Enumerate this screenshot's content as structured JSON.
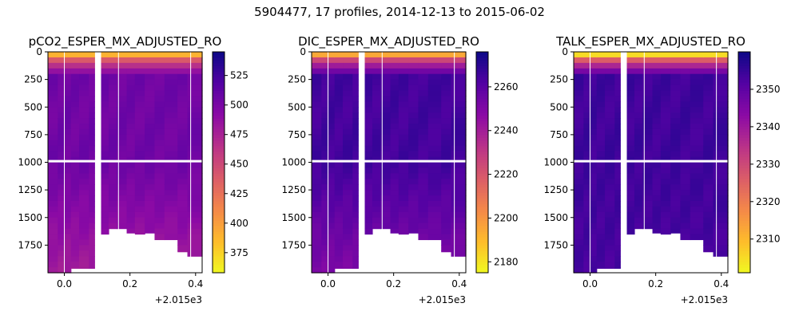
{
  "figure": {
    "suptitle": "5904477, 17 profiles, 2014-12-13 to 2015-06-02"
  },
  "chart_data": [
    {
      "type": "heatmap",
      "title": "pCO2_ESPER_MX_ADJUSTED_RO",
      "colormap": "plasma",
      "colormap_reversed": true,
      "x_offset_label": "+2.015e3",
      "xlim": [
        -0.05,
        0.42
      ],
      "xticks": [
        0.0,
        0.2,
        0.4
      ],
      "xtick_labels": [
        "0.0",
        "0.2",
        "0.4"
      ],
      "ylim": [
        2000,
        0
      ],
      "yticks": [
        0,
        250,
        500,
        750,
        1000,
        1250,
        1500,
        1750
      ],
      "ytick_labels": [
        "0",
        "250",
        "500",
        "750",
        "1000",
        "1250",
        "1500",
        "1750"
      ],
      "colorbar": {
        "min": 358,
        "max": 545,
        "ticks": [
          375,
          400,
          425,
          450,
          475,
          500,
          525
        ],
        "tick_labels": [
          "375",
          "400",
          "425",
          "450",
          "475",
          "500",
          "525"
        ]
      },
      "surface_value": 390,
      "deep_value": 505,
      "bottom_value": 478
    },
    {
      "type": "heatmap",
      "title": "DIC_ESPER_MX_ADJUSTED_RO",
      "colormap": "plasma",
      "colormap_reversed": true,
      "x_offset_label": "+2.015e3",
      "xlim": [
        -0.05,
        0.42
      ],
      "xticks": [
        0.0,
        0.2,
        0.4
      ],
      "xtick_labels": [
        "0.0",
        "0.2",
        "0.4"
      ],
      "ylim": [
        2000,
        0
      ],
      "yticks": [
        0,
        250,
        500,
        750,
        1000,
        1250,
        1500,
        1750
      ],
      "ytick_labels": [
        "0",
        "250",
        "500",
        "750",
        "1000",
        "1250",
        "1500",
        "1750"
      ],
      "colorbar": {
        "min": 2175,
        "max": 2276,
        "ticks": [
          2180,
          2200,
          2220,
          2240,
          2260
        ],
        "tick_labels": [
          "2180",
          "2200",
          "2220",
          "2240",
          "2260"
        ]
      },
      "surface_value": 2195,
      "deep_value": 2265,
      "bottom_value": 2250
    },
    {
      "type": "heatmap",
      "title": "TALK_ESPER_MX_ADJUSTED_RO",
      "colormap": "plasma",
      "colormap_reversed": true,
      "x_offset_label": "+2.015e3",
      "xlim": [
        -0.05,
        0.42
      ],
      "xticks": [
        0.0,
        0.2,
        0.4
      ],
      "xtick_labels": [
        "0.0",
        "0.2",
        "0.4"
      ],
      "ylim": [
        2000,
        0
      ],
      "yticks": [
        0,
        250,
        500,
        750,
        1000,
        1250,
        1500,
        1750
      ],
      "ytick_labels": [
        "0",
        "250",
        "500",
        "750",
        "1000",
        "1250",
        "1500",
        "1750"
      ],
      "colorbar": {
        "min": 2301,
        "max": 2360,
        "ticks": [
          2310,
          2320,
          2330,
          2340,
          2350
        ],
        "tick_labels": [
          "2310",
          "2320",
          "2330",
          "2340",
          "2350"
        ]
      },
      "surface_value": 2305,
      "deep_value": 2354,
      "bottom_value": 2353
    }
  ]
}
